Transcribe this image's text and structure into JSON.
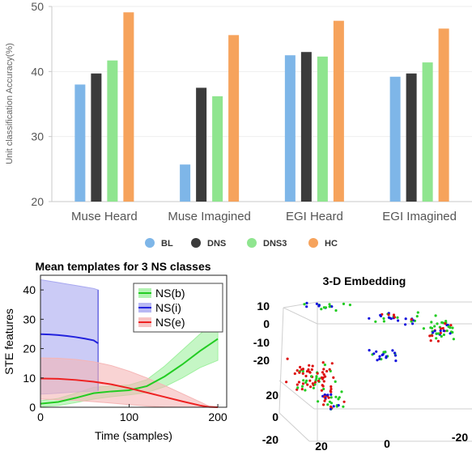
{
  "chart_data": [
    {
      "type": "bar",
      "ylabel": "Unit classification Accuracy(%)",
      "ylim": [
        20,
        50
      ],
      "yticks": [
        20,
        30,
        40,
        50
      ],
      "grid": false,
      "legend_placement": "bottom",
      "categories": [
        "Muse Heard",
        "Muse Imagined",
        "EGI Heard",
        "EGI Imagined"
      ],
      "series": [
        {
          "name": "BL",
          "color": "#7eb6e8",
          "values": [
            38.0,
            25.7,
            42.5,
            39.2
          ]
        },
        {
          "name": "DNS",
          "color": "#3b3b3b",
          "values": [
            39.7,
            37.5,
            43.0,
            39.7
          ]
        },
        {
          "name": "DNS3",
          "color": "#8fe58f",
          "values": [
            41.7,
            36.2,
            42.3,
            41.4
          ]
        },
        {
          "name": "HC",
          "color": "#f6a35c",
          "values": [
            49.1,
            45.6,
            47.8,
            46.6
          ]
        }
      ]
    },
    {
      "type": "line",
      "title": "Mean templates for 3 NS classes",
      "xlabel": "Time (samples)",
      "ylabel": "STE features",
      "xlim": [
        0,
        210
      ],
      "ylim": [
        0,
        45
      ],
      "xticks": [
        0,
        100,
        200
      ],
      "yticks": [
        0,
        10,
        20,
        30,
        40
      ],
      "legend_placement": "top-right",
      "series": [
        {
          "name": "NS(b)",
          "color": "#22cc22",
          "band_color": "#9ff09f",
          "x": [
            0,
            20,
            40,
            60,
            80,
            100,
            120,
            140,
            160,
            180,
            200
          ],
          "y": [
            1.2,
            1.8,
            3.2,
            4.8,
            5.4,
            5.8,
            7.2,
            10.5,
            14.6,
            19.2,
            23.3
          ],
          "lower": [
            0.2,
            0.6,
            1.6,
            2.8,
            3.6,
            4.2,
            5.0,
            7.0,
            10.0,
            13.5,
            16.0
          ],
          "upper": [
            2.2,
            3.0,
            4.8,
            6.8,
            7.2,
            7.6,
            9.4,
            14.0,
            19.5,
            25.0,
            30.0
          ]
        },
        {
          "name": "NS(i)",
          "color": "#2222dd",
          "band_color": "#a8a8f0",
          "x": [
            0,
            10,
            20,
            30,
            40,
            50,
            60,
            65
          ],
          "y": [
            24.9,
            24.8,
            24.6,
            24.3,
            23.9,
            23.4,
            22.8,
            21.8
          ],
          "lower": [
            4.5,
            4.6,
            4.8,
            5.0,
            5.2,
            5.4,
            5.5,
            5.6
          ],
          "upper": [
            43.5,
            43.0,
            42.5,
            42.0,
            41.5,
            41.0,
            40.5,
            40.0
          ]
        },
        {
          "name": "NS(e)",
          "color": "#ee2222",
          "band_color": "#f5b5b5",
          "x": [
            0,
            20,
            40,
            60,
            80,
            100,
            120,
            140,
            160,
            180,
            190,
            200
          ],
          "y": [
            9.8,
            9.7,
            9.3,
            8.7,
            7.8,
            6.5,
            5.0,
            3.5,
            2.0,
            0.6,
            0.1,
            0.0
          ],
          "lower": [
            2.8,
            2.6,
            2.3,
            1.9,
            1.4,
            0.9,
            0.4,
            0.1,
            0.0,
            0.0,
            0.0,
            0.0
          ],
          "upper": [
            16.8,
            16.7,
            16.3,
            15.5,
            14.2,
            12.3,
            10.0,
            7.4,
            4.6,
            1.8,
            0.4,
            0.0
          ]
        }
      ]
    },
    {
      "type": "scatter",
      "title": "3-D Embedding",
      "projection": "3d",
      "z_ticks": [
        "10",
        "0",
        "-10",
        "-20"
      ],
      "y_ticks": [
        "20",
        "0",
        "-20"
      ],
      "x_ticks": [
        "20",
        "0",
        "-20"
      ],
      "series": [
        {
          "color": "#dd1111"
        },
        {
          "color": "#22cc22"
        },
        {
          "color": "#1111dd"
        }
      ]
    }
  ]
}
